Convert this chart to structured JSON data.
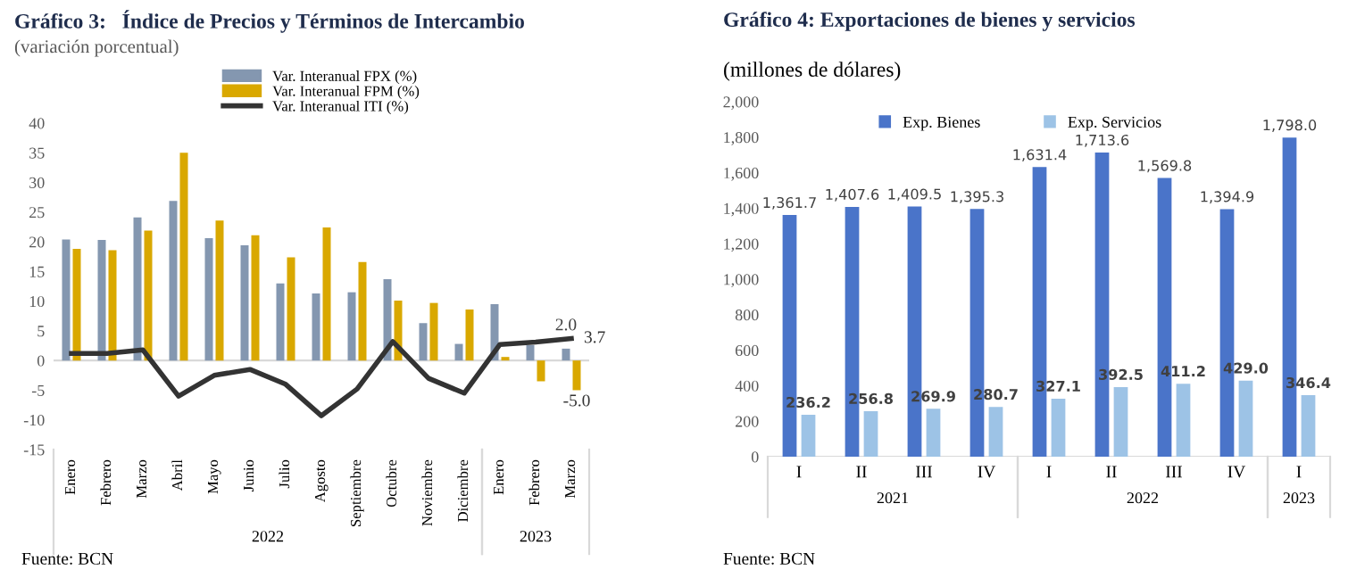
{
  "chart_data": [
    {
      "type": "bar",
      "title": "Gráfico 3:   Índice de Precios y Términos de Intercambio",
      "subtitle": "(variación porcentual)",
      "categories": [
        "Enero",
        "Febrero",
        "Marzo",
        "Abril",
        "Mayo",
        "Junio",
        "Julio",
        "Agosto",
        "Septiembre",
        "Octubre",
        "Noviembre",
        "Diciembre",
        "Enero",
        "Febrero",
        "Marzo"
      ],
      "series": [
        {
          "name": "Var. Interanual FPX (%)",
          "type": "bar",
          "color": "#8497b0",
          "values": [
            20.4,
            20.3,
            24.1,
            26.9,
            20.6,
            19.4,
            13.0,
            11.3,
            11.5,
            13.7,
            6.3,
            2.8,
            9.5,
            2.6,
            2.0
          ],
          "value_labels": [
            null,
            null,
            null,
            null,
            null,
            null,
            null,
            null,
            null,
            null,
            null,
            null,
            null,
            null,
            "2.0"
          ]
        },
        {
          "name": "Var. Interanual FPM (%)",
          "type": "bar",
          "color": "#d9a800",
          "values": [
            18.8,
            18.6,
            21.9,
            35.0,
            23.6,
            21.1,
            17.4,
            22.4,
            16.6,
            10.1,
            9.7,
            8.6,
            0.6,
            -3.5,
            -5.0
          ],
          "value_labels": [
            null,
            null,
            null,
            null,
            null,
            null,
            null,
            null,
            null,
            null,
            null,
            null,
            null,
            null,
            "-5.0"
          ]
        },
        {
          "name": "Var. Interanual ITI (%)",
          "type": "line",
          "color": "#333333",
          "values": [
            1.2,
            1.2,
            1.8,
            -6.0,
            -2.5,
            -1.5,
            -4.0,
            -9.3,
            -4.8,
            3.2,
            -3.0,
            -5.5,
            2.7,
            3.1,
            3.7
          ],
          "value_labels": [
            null,
            null,
            null,
            null,
            null,
            null,
            null,
            null,
            null,
            null,
            null,
            null,
            null,
            null,
            "3.7"
          ]
        }
      ],
      "ylim": [
        -15,
        40
      ],
      "yticks": [
        -15,
        -10,
        -5,
        0,
        5,
        10,
        15,
        20,
        25,
        30,
        35,
        40
      ],
      "legend": "top",
      "marker": "none",
      "line_style": "solid",
      "annotations": [
        "2022",
        "2023",
        "Fuente: BCN"
      ]
    },
    {
      "type": "bar",
      "title": "Gráfico 4: Exportaciones de bienes y servicios",
      "subtitle": "(millones de dólares)",
      "categories": [
        "I",
        "II",
        "III",
        "IV",
        "I",
        "II",
        "III",
        "IV",
        "I"
      ],
      "series": [
        {
          "name": "Exp. Bienes",
          "color": "#4a74c9",
          "values": [
            1361.7,
            1407.6,
            1409.5,
            1395.3,
            1631.4,
            1713.6,
            1569.8,
            1394.9,
            1798.0
          ],
          "value_labels": [
            "1,361.7",
            "1,407.6",
            "1,409.5",
            "1,395.3",
            "1,631.4",
            "1,713.6",
            "1,569.8",
            "1,394.9",
            "1,798.0"
          ]
        },
        {
          "name": "Exp. Servicios",
          "color": "#9dc3e6",
          "values": [
            236.2,
            256.8,
            269.9,
            280.7,
            327.1,
            392.5,
            411.2,
            429.0,
            346.4
          ],
          "value_labels": [
            "236.2",
            "256.8",
            "269.9",
            "280.7",
            "327.1",
            "392.5",
            "411.2",
            "429.0",
            "346.4"
          ]
        }
      ],
      "ylim": [
        0,
        2000
      ],
      "yticks": [
        0,
        200,
        400,
        600,
        800,
        {
          "value": 1000,
          "label": "1,000"
        },
        {
          "value": 1200,
          "label": "1,200"
        },
        {
          "value": 1400,
          "label": "1,400"
        },
        {
          "value": 1600,
          "label": "1,600"
        },
        {
          "value": 1800,
          "label": "1,800"
        },
        {
          "value": 2000,
          "label": "2,000"
        }
      ],
      "legend": "top",
      "annotations": [
        "2021",
        "2022",
        "2023",
        "Fuente: BCN"
      ]
    }
  ]
}
